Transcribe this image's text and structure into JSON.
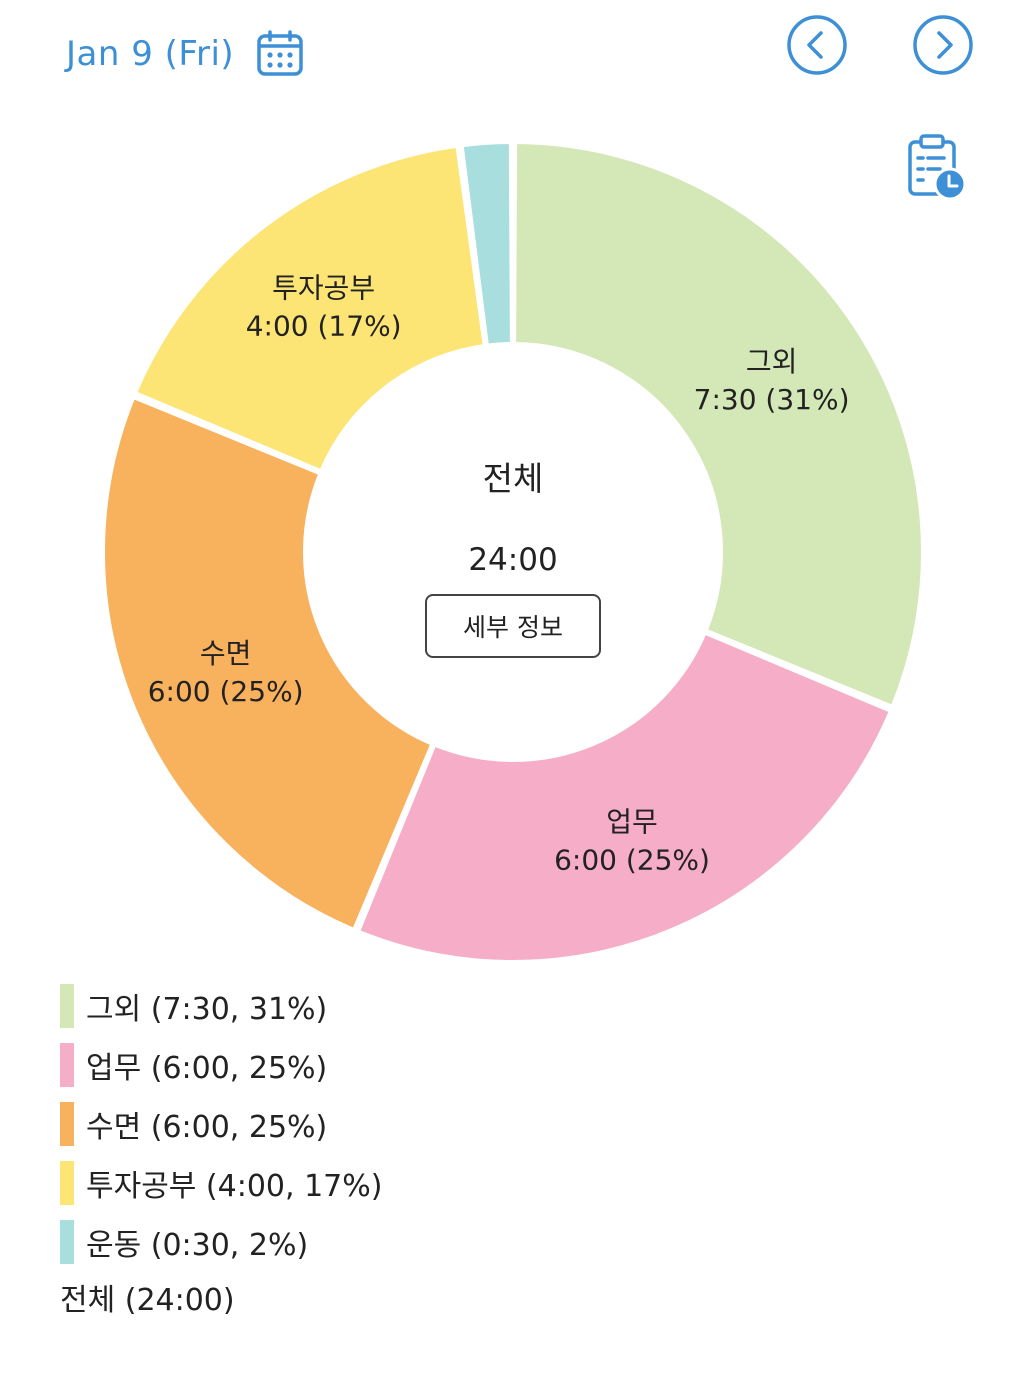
{
  "header": {
    "date_label": "Jan 9 (Fri)"
  },
  "icons": {
    "calendar": "calendar-icon",
    "prev": "chevron-left-icon",
    "next": "chevron-right-icon",
    "report": "clipboard-clock-icon"
  },
  "colors": {
    "accent": "#3d8fd6"
  },
  "center": {
    "title": "전체",
    "total": "24:00",
    "detail_button": "세부 정보"
  },
  "chart_data": {
    "type": "pie",
    "donut": true,
    "total_minutes": 1440,
    "slices": [
      {
        "name": "그외",
        "minutes": 450,
        "time": "7:30",
        "percent": 31,
        "label_pct": "7:30 (31%)",
        "color": "#d4e8b7"
      },
      {
        "name": "업무",
        "minutes": 360,
        "time": "6:00",
        "percent": 25,
        "label_pct": "6:00 (25%)",
        "color": "#f6adc8"
      },
      {
        "name": "수면",
        "minutes": 360,
        "time": "6:00",
        "percent": 25,
        "label_pct": "6:00 (25%)",
        "color": "#f8b15d"
      },
      {
        "name": "투자공부",
        "minutes": 240,
        "time": "4:00",
        "percent": 17,
        "label_pct": "4:00 (17%)",
        "color": "#fce574"
      },
      {
        "name": "운동",
        "minutes": 30,
        "time": "0:30",
        "percent": 2,
        "label_pct": "",
        "color": "#a9dedf"
      }
    ]
  },
  "legend": {
    "items": [
      "그외 (7:30, 31%)",
      "업무 (6:00, 25%)",
      "수면 (6:00, 25%)",
      "투자공부 (4:00, 17%)",
      "운동 (0:30, 2%)"
    ],
    "total": "전체 (24:00)"
  }
}
